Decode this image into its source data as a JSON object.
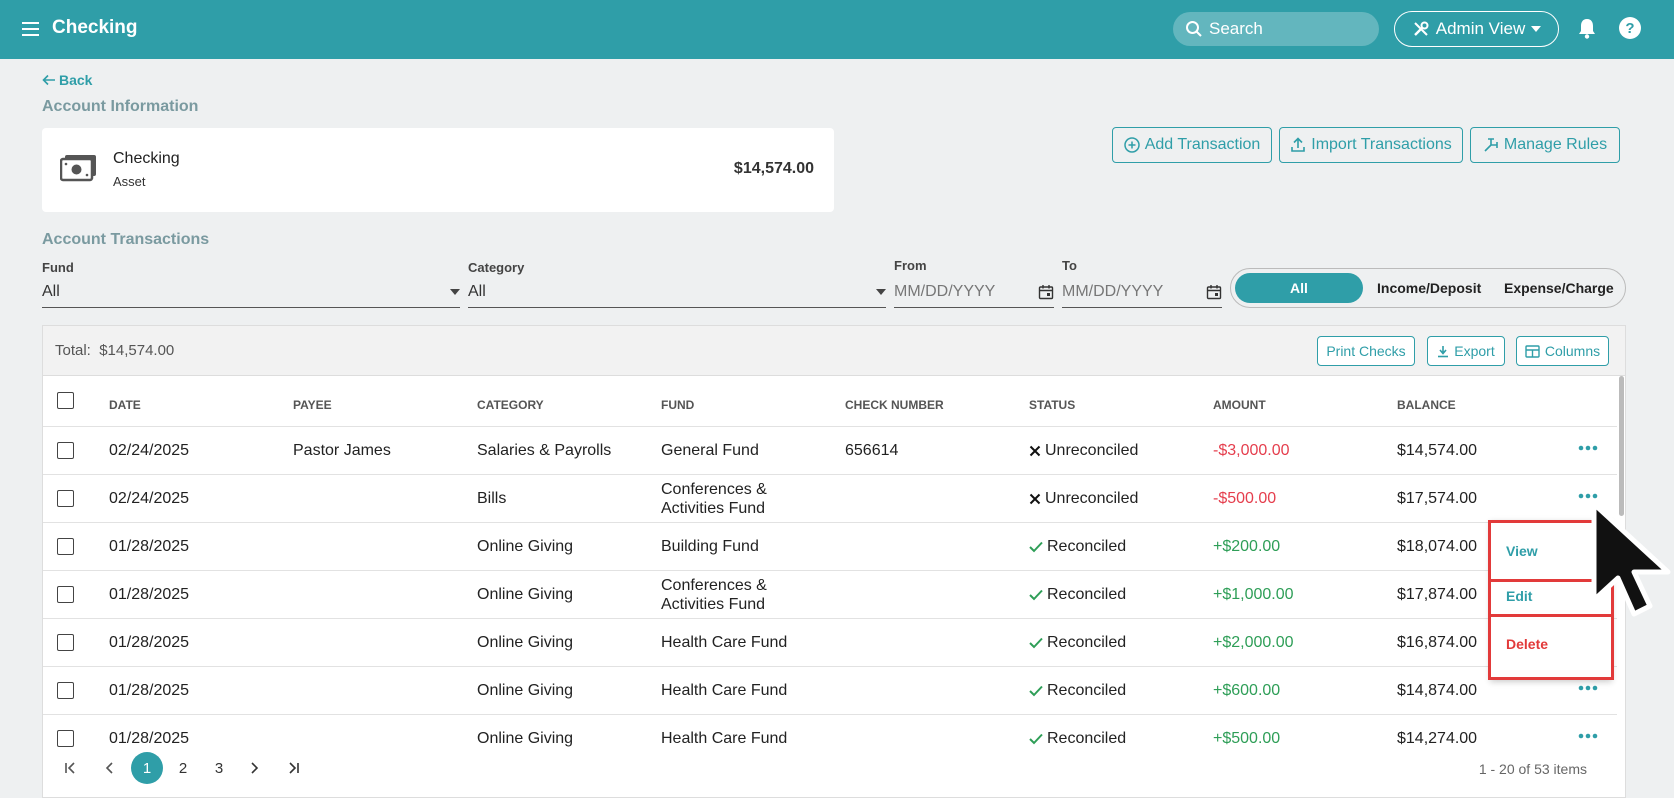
{
  "header": {
    "title": "Checking",
    "search_placeholder": "Search",
    "view_label": "Admin View"
  },
  "back_label": "Back",
  "account_info": {
    "section_title": "Account Information",
    "name": "Checking",
    "type": "Asset",
    "balance": "$14,574.00"
  },
  "actions": {
    "add": "Add Transaction",
    "import": "Import Transactions",
    "rules": "Manage Rules"
  },
  "transactions_title": "Account Transactions",
  "filters": {
    "fund_label": "Fund",
    "fund_value": "All",
    "category_label": "Category",
    "category_value": "All",
    "from_label": "From",
    "from_placeholder": "MM/DD/YYYY",
    "to_label": "To",
    "to_placeholder": "MM/DD/YYYY",
    "type_options": [
      "All",
      "Income/Deposit",
      "Expense/Charge"
    ],
    "type_selected": "All"
  },
  "table": {
    "total_label": "Total:",
    "total_value": "$14,574.00",
    "print_checks": "Print Checks",
    "export": "Export",
    "columns_btn": "Columns",
    "columns": [
      "DATE",
      "PAYEE",
      "CATEGORY",
      "FUND",
      "CHECK NUMBER",
      "STATUS",
      "AMOUNT",
      "BALANCE"
    ],
    "rows": [
      {
        "date": "02/24/2025",
        "payee": "Pastor James",
        "category": "Salaries & Payrolls",
        "fund": "General Fund",
        "check": "656614",
        "status": "Unreconciled",
        "amount": "-$3,000.00",
        "balance": "$14,574.00"
      },
      {
        "date": "02/24/2025",
        "payee": "",
        "category": "Bills",
        "fund": "Conferences & Activities Fund",
        "check": "",
        "status": "Unreconciled",
        "amount": "-$500.00",
        "balance": "$17,574.00"
      },
      {
        "date": "01/28/2025",
        "payee": "",
        "category": "Online Giving",
        "fund": "Building Fund",
        "check": "",
        "status": "Reconciled",
        "amount": "+$200.00",
        "balance": "$18,074.00"
      },
      {
        "date": "01/28/2025",
        "payee": "",
        "category": "Online Giving",
        "fund": "Conferences & Activities Fund",
        "check": "",
        "status": "Reconciled",
        "amount": "+$1,000.00",
        "balance": "$17,874.00"
      },
      {
        "date": "01/28/2025",
        "payee": "",
        "category": "Online Giving",
        "fund": "Health Care Fund",
        "check": "",
        "status": "Reconciled",
        "amount": "+$2,000.00",
        "balance": "$16,874.00"
      },
      {
        "date": "01/28/2025",
        "payee": "",
        "category": "Online Giving",
        "fund": "Health Care Fund",
        "check": "",
        "status": "Reconciled",
        "amount": "+$600.00",
        "balance": "$14,874.00"
      },
      {
        "date": "01/28/2025",
        "payee": "",
        "category": "Online Giving",
        "fund": "Health Care Fund",
        "check": "",
        "status": "Reconciled",
        "amount": "+$500.00",
        "balance": "$14,274.00"
      }
    ]
  },
  "pagination": {
    "pages": [
      "1",
      "2",
      "3"
    ],
    "current": "1",
    "info": "1 - 20 of 53 items"
  },
  "context_menu": {
    "view": "View",
    "edit": "Edit",
    "delete": "Delete"
  },
  "colors": {
    "primary": "#2f9ea8",
    "negative": "#e53e4d",
    "positive": "#2e9e57",
    "highlight": "#e23a3a"
  }
}
